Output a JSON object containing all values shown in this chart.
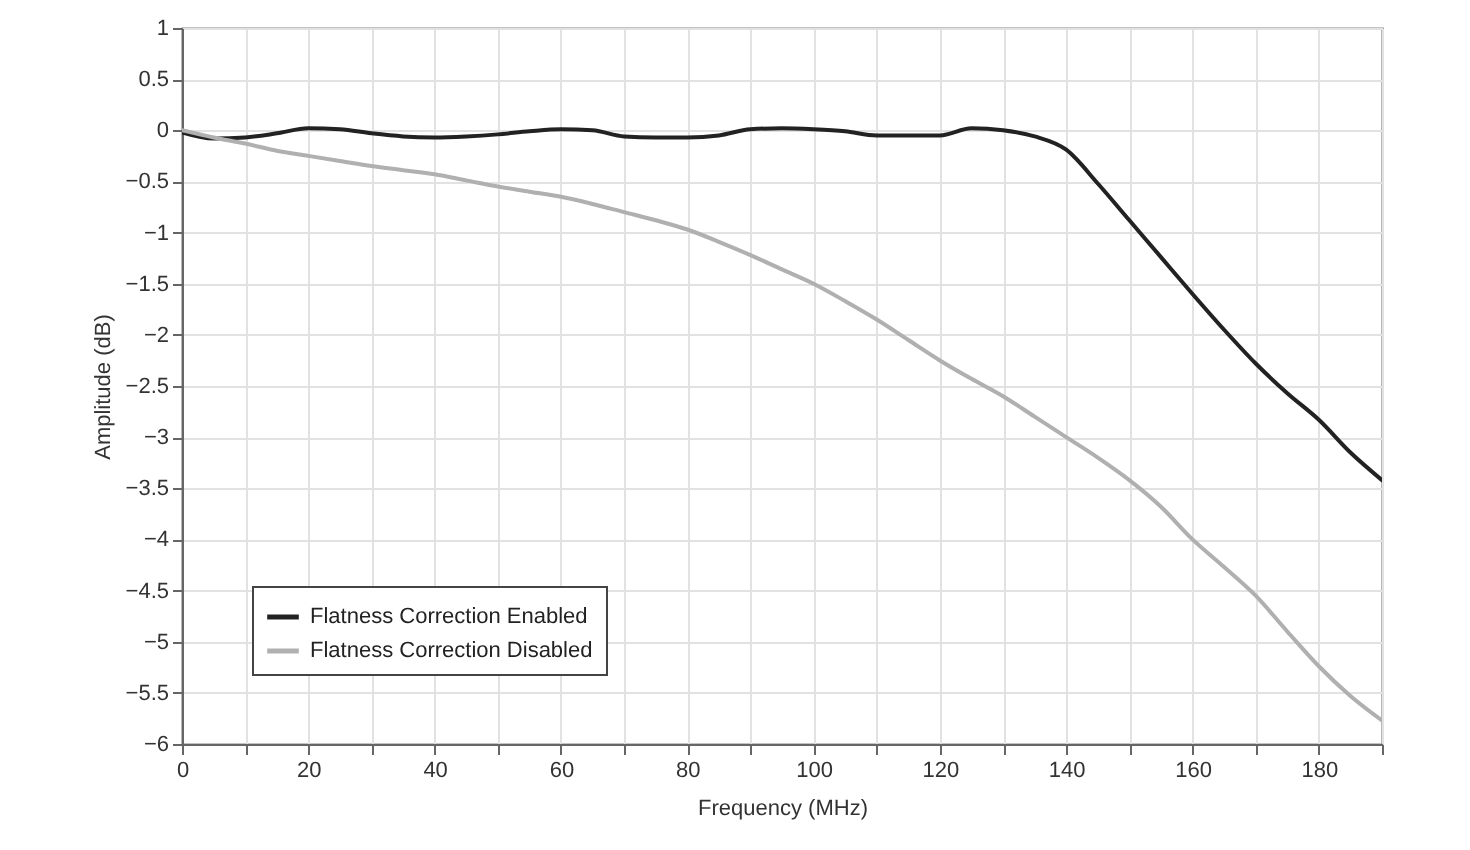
{
  "chart_data": {
    "type": "line",
    "xlabel": "Frequency (MHz)",
    "ylabel": "Amplitude (dB)",
    "x": [
      0,
      5,
      10,
      15,
      20,
      25,
      30,
      35,
      40,
      45,
      50,
      55,
      60,
      65,
      70,
      75,
      80,
      85,
      90,
      95,
      100,
      105,
      110,
      115,
      120,
      125,
      130,
      135,
      140,
      145,
      150,
      155,
      160,
      165,
      170,
      175,
      180,
      185,
      190
    ],
    "series": [
      {
        "name": "Flatness Correction Enabled",
        "color": "#222222",
        "values": [
          -0.02,
          -0.08,
          -0.07,
          -0.03,
          0.02,
          0.01,
          -0.03,
          -0.06,
          -0.07,
          -0.06,
          -0.04,
          -0.01,
          0.01,
          0,
          -0.06,
          -0.07,
          -0.07,
          -0.05,
          0.01,
          0.02,
          0.01,
          -0.01,
          -0.05,
          -0.05,
          -0.05,
          0.02,
          0.0,
          -0.06,
          -0.19,
          -0.52,
          -0.88,
          -1.24,
          -1.6,
          -1.95,
          -2.28,
          -2.57,
          -2.83,
          -3.15,
          -3.42
        ]
      },
      {
        "name": "Flatness Correction Disabled",
        "color": "#b0b0b0",
        "values": [
          0,
          -0.07,
          -0.13,
          -0.2,
          -0.25,
          -0.3,
          -0.35,
          -0.39,
          -0.43,
          -0.49,
          -0.55,
          -0.6,
          -0.65,
          -0.72,
          -0.8,
          -0.88,
          -0.97,
          -1.09,
          -1.22,
          -1.36,
          -1.5,
          -1.67,
          -1.85,
          -2.05,
          -2.25,
          -2.43,
          -2.6,
          -2.8,
          -3.0,
          -3.2,
          -3.42,
          -3.68,
          -4.0,
          -4.27,
          -4.55,
          -4.9,
          -5.24,
          -5.53,
          -5.77
        ]
      }
    ],
    "xlim": [
      0,
      190
    ],
    "xticks": [
      0,
      {
        "value": 10,
        "label": null
      },
      20,
      {
        "value": 30,
        "label": null
      },
      40,
      {
        "value": 50,
        "label": null
      },
      60,
      {
        "value": 70,
        "label": null
      },
      80,
      {
        "value": 90,
        "label": null
      },
      100,
      {
        "value": 110,
        "label": null
      },
      120,
      {
        "value": 130,
        "label": null
      },
      140,
      {
        "value": 150,
        "label": null
      },
      160,
      {
        "value": 170,
        "label": null
      },
      180,
      {
        "value": 190,
        "label": null
      }
    ],
    "ylim": [
      -6,
      1
    ],
    "yticks": [
      {
        "value": -6,
        "label": "−6"
      },
      {
        "value": -5.5,
        "label": "−5.5"
      },
      {
        "value": -5,
        "label": "−5"
      },
      {
        "value": -4.5,
        "label": "−4.5"
      },
      {
        "value": -4,
        "label": "−4"
      },
      {
        "value": -3.5,
        "label": "−3.5"
      },
      {
        "value": -3,
        "label": "−3"
      },
      {
        "value": -2.5,
        "label": "−2.5"
      },
      {
        "value": -2,
        "label": "−2"
      },
      {
        "value": -1.5,
        "label": "−1.5"
      },
      {
        "value": -1,
        "label": "−1"
      },
      {
        "value": -0.5,
        "label": "−0.5"
      },
      0,
      0.5,
      1
    ],
    "grid": true,
    "legend": "bottom left",
    "line_style": "solid"
  }
}
